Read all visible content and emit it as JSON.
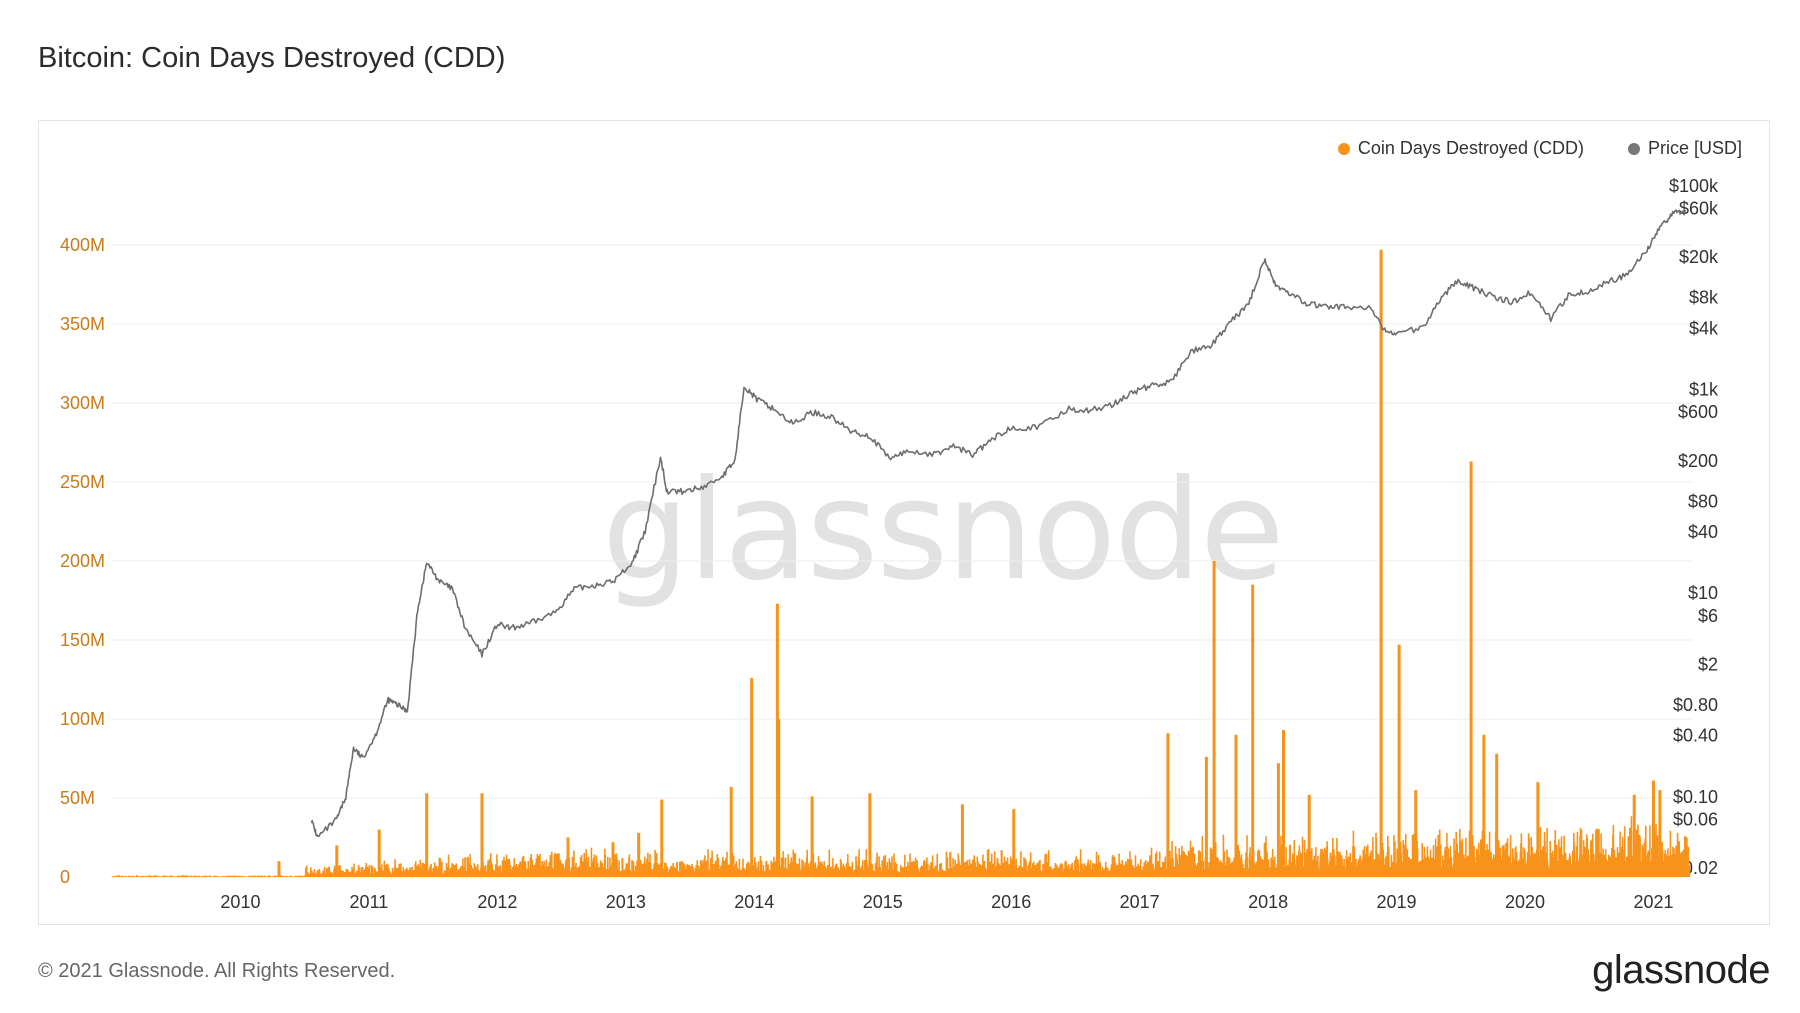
{
  "title": "Bitcoin: Coin Days Destroyed (CDD)",
  "footer": {
    "copyright": "© 2021 Glassnode. All Rights Reserved.",
    "logo": "glassnode"
  },
  "watermark": "glassnode",
  "legend": [
    {
      "label": "Coin Days Destroyed (CDD)",
      "color": "#f7931a"
    },
    {
      "label": "Price [USD]",
      "color": "#777777"
    }
  ],
  "colors": {
    "cdd": "#f7931a",
    "price": "#6e6e6e",
    "grid": "#eeeeee",
    "left_axis": "#c77d1a",
    "right_axis": "#333333"
  },
  "chart_data": {
    "type": "bar",
    "x_ticks": [
      "2010",
      "2011",
      "2012",
      "2013",
      "2014",
      "2015",
      "2016",
      "2017",
      "2018",
      "2019",
      "2020",
      "2021"
    ],
    "x_range": [
      2009.0,
      2021.3
    ],
    "left_axis": {
      "ticks": [
        "0",
        "50M",
        "100M",
        "150M",
        "200M",
        "250M",
        "300M",
        "350M",
        "400M"
      ],
      "values": [
        0,
        50,
        100,
        150,
        200,
        250,
        300,
        350,
        400
      ],
      "unit": "M",
      "range": [
        0,
        450
      ]
    },
    "right_axis": {
      "scale": "log",
      "ticks": [
        "$0.02",
        "$0.06",
        "$0.10",
        "$0.40",
        "$0.80",
        "$2",
        "$6",
        "$10",
        "$40",
        "$80",
        "$200",
        "$600",
        "$1k",
        "$4k",
        "$8k",
        "$20k",
        "$60k",
        "$100k"
      ],
      "values": [
        0.02,
        0.06,
        0.1,
        0.4,
        0.8,
        2,
        6,
        10,
        40,
        80,
        200,
        600,
        1000,
        4000,
        8000,
        20000,
        60000,
        100000
      ]
    },
    "series": [
      {
        "name": "Coin Days Destroyed (CDD)",
        "kind": "bar",
        "spikes": [
          {
            "x": 2010.3,
            "y": 10
          },
          {
            "x": 2010.75,
            "y": 20
          },
          {
            "x": 2011.08,
            "y": 30
          },
          {
            "x": 2011.45,
            "y": 53
          },
          {
            "x": 2011.88,
            "y": 53
          },
          {
            "x": 2012.55,
            "y": 25
          },
          {
            "x": 2012.9,
            "y": 22
          },
          {
            "x": 2013.1,
            "y": 28
          },
          {
            "x": 2013.28,
            "y": 49
          },
          {
            "x": 2013.82,
            "y": 57
          },
          {
            "x": 2013.98,
            "y": 126
          },
          {
            "x": 2014.18,
            "y": 173
          },
          {
            "x": 2014.19,
            "y": 100
          },
          {
            "x": 2014.45,
            "y": 51
          },
          {
            "x": 2014.9,
            "y": 53
          },
          {
            "x": 2015.62,
            "y": 46
          },
          {
            "x": 2016.02,
            "y": 43
          },
          {
            "x": 2017.22,
            "y": 91
          },
          {
            "x": 2017.52,
            "y": 76
          },
          {
            "x": 2017.58,
            "y": 200
          },
          {
            "x": 2017.88,
            "y": 185
          },
          {
            "x": 2017.75,
            "y": 90
          },
          {
            "x": 2018.08,
            "y": 72
          },
          {
            "x": 2018.12,
            "y": 93
          },
          {
            "x": 2018.32,
            "y": 52
          },
          {
            "x": 2018.88,
            "y": 397
          },
          {
            "x": 2019.02,
            "y": 147
          },
          {
            "x": 2019.15,
            "y": 55
          },
          {
            "x": 2019.58,
            "y": 263
          },
          {
            "x": 2019.68,
            "y": 90
          },
          {
            "x": 2019.78,
            "y": 78
          },
          {
            "x": 2020.1,
            "y": 60
          },
          {
            "x": 2020.85,
            "y": 52
          },
          {
            "x": 2021.0,
            "y": 61
          },
          {
            "x": 2021.05,
            "y": 55
          }
        ]
      },
      {
        "name": "Price [USD]",
        "kind": "line",
        "points": [
          {
            "x": 2010.55,
            "y": 0.06
          },
          {
            "x": 2010.6,
            "y": 0.04
          },
          {
            "x": 2010.75,
            "y": 0.06
          },
          {
            "x": 2010.82,
            "y": 0.1
          },
          {
            "x": 2010.88,
            "y": 0.3
          },
          {
            "x": 2010.95,
            "y": 0.24
          },
          {
            "x": 2011.05,
            "y": 0.4
          },
          {
            "x": 2011.15,
            "y": 0.9
          },
          {
            "x": 2011.22,
            "y": 0.8
          },
          {
            "x": 2011.3,
            "y": 0.7
          },
          {
            "x": 2011.38,
            "y": 7
          },
          {
            "x": 2011.45,
            "y": 20
          },
          {
            "x": 2011.55,
            "y": 13
          },
          {
            "x": 2011.65,
            "y": 11
          },
          {
            "x": 2011.75,
            "y": 4.5
          },
          {
            "x": 2011.88,
            "y": 2.5
          },
          {
            "x": 2012.0,
            "y": 5
          },
          {
            "x": 2012.1,
            "y": 4.5
          },
          {
            "x": 2012.25,
            "y": 5
          },
          {
            "x": 2012.45,
            "y": 6.5
          },
          {
            "x": 2012.6,
            "y": 11
          },
          {
            "x": 2012.75,
            "y": 12
          },
          {
            "x": 2012.9,
            "y": 13
          },
          {
            "x": 2013.05,
            "y": 20
          },
          {
            "x": 2013.15,
            "y": 40
          },
          {
            "x": 2013.27,
            "y": 220
          },
          {
            "x": 2013.32,
            "y": 100
          },
          {
            "x": 2013.45,
            "y": 100
          },
          {
            "x": 2013.6,
            "y": 110
          },
          {
            "x": 2013.75,
            "y": 140
          },
          {
            "x": 2013.85,
            "y": 200
          },
          {
            "x": 2013.92,
            "y": 1100
          },
          {
            "x": 2014.02,
            "y": 800
          },
          {
            "x": 2014.15,
            "y": 650
          },
          {
            "x": 2014.3,
            "y": 460
          },
          {
            "x": 2014.45,
            "y": 600
          },
          {
            "x": 2014.6,
            "y": 540
          },
          {
            "x": 2014.75,
            "y": 390
          },
          {
            "x": 2014.9,
            "y": 350
          },
          {
            "x": 2015.05,
            "y": 210
          },
          {
            "x": 2015.2,
            "y": 250
          },
          {
            "x": 2015.4,
            "y": 230
          },
          {
            "x": 2015.55,
            "y": 280
          },
          {
            "x": 2015.7,
            "y": 230
          },
          {
            "x": 2015.85,
            "y": 320
          },
          {
            "x": 2016.0,
            "y": 430
          },
          {
            "x": 2016.2,
            "y": 420
          },
          {
            "x": 2016.45,
            "y": 650
          },
          {
            "x": 2016.6,
            "y": 620
          },
          {
            "x": 2016.8,
            "y": 720
          },
          {
            "x": 2016.95,
            "y": 950
          },
          {
            "x": 2017.1,
            "y": 1100
          },
          {
            "x": 2017.25,
            "y": 1200
          },
          {
            "x": 2017.4,
            "y": 2400
          },
          {
            "x": 2017.55,
            "y": 2600
          },
          {
            "x": 2017.7,
            "y": 4500
          },
          {
            "x": 2017.85,
            "y": 7000
          },
          {
            "x": 2017.97,
            "y": 19000
          },
          {
            "x": 2018.05,
            "y": 11000
          },
          {
            "x": 2018.15,
            "y": 9000
          },
          {
            "x": 2018.3,
            "y": 7000
          },
          {
            "x": 2018.45,
            "y": 6500
          },
          {
            "x": 2018.6,
            "y": 6500
          },
          {
            "x": 2018.8,
            "y": 6300
          },
          {
            "x": 2018.9,
            "y": 3800
          },
          {
            "x": 2019.0,
            "y": 3600
          },
          {
            "x": 2019.2,
            "y": 4000
          },
          {
            "x": 2019.35,
            "y": 8000
          },
          {
            "x": 2019.48,
            "y": 12000
          },
          {
            "x": 2019.6,
            "y": 10000
          },
          {
            "x": 2019.75,
            "y": 8200
          },
          {
            "x": 2019.9,
            "y": 7200
          },
          {
            "x": 2020.05,
            "y": 9000
          },
          {
            "x": 2020.2,
            "y": 5000
          },
          {
            "x": 2020.35,
            "y": 8800
          },
          {
            "x": 2020.5,
            "y": 9300
          },
          {
            "x": 2020.65,
            "y": 11500
          },
          {
            "x": 2020.8,
            "y": 13500
          },
          {
            "x": 2020.95,
            "y": 24000
          },
          {
            "x": 2021.05,
            "y": 38000
          },
          {
            "x": 2021.15,
            "y": 55000
          },
          {
            "x": 2021.25,
            "y": 58000
          }
        ]
      }
    ]
  }
}
